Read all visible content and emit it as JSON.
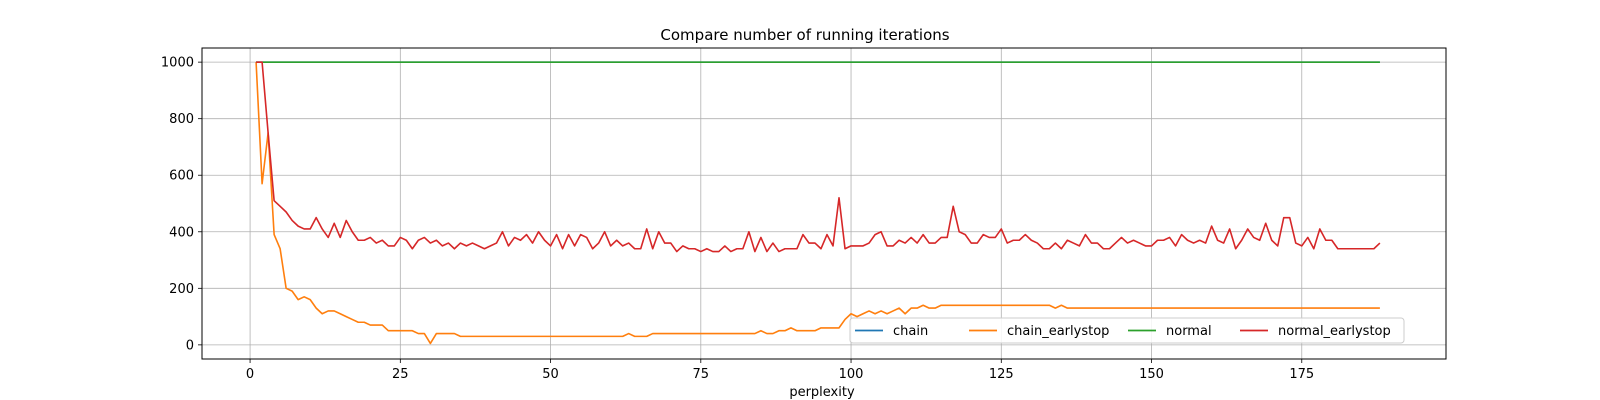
{
  "chart_data": {
    "type": "line",
    "title": "Compare number of running iterations",
    "xlabel": "perplexity",
    "ylabel": "",
    "xlim": [
      -8,
      199
    ],
    "ylim": [
      -50,
      1050
    ],
    "xticks": [
      0,
      25,
      50,
      75,
      100,
      125,
      150,
      175
    ],
    "yticks": [
      0,
      200,
      400,
      600,
      800,
      1000
    ],
    "grid": true,
    "legend_position": "lower right",
    "series": [
      {
        "name": "chain",
        "color": "#1f77b4",
        "x_start": 1,
        "x_end": 188,
        "constant": 1000
      },
      {
        "name": "chain_earlystop",
        "color": "#ff7f0e",
        "x_start": 1,
        "values": [
          1000,
          570,
          750,
          390,
          340,
          200,
          190,
          160,
          170,
          160,
          130,
          110,
          120,
          120,
          110,
          100,
          90,
          80,
          80,
          70,
          70,
          70,
          50,
          50,
          50,
          50,
          50,
          40,
          40,
          5,
          40,
          40,
          40,
          40,
          30,
          30,
          30,
          30,
          30,
          30,
          30,
          30,
          30,
          30,
          30,
          30,
          30,
          30,
          30,
          30,
          30,
          30,
          30,
          30,
          30,
          30,
          30,
          30,
          30,
          30,
          30,
          30,
          40,
          30,
          30,
          30,
          40,
          40,
          40,
          40,
          40,
          40,
          40,
          40,
          40,
          40,
          40,
          40,
          40,
          40,
          40,
          40,
          40,
          40,
          50,
          40,
          40,
          50,
          50,
          60,
          50,
          50,
          50,
          50,
          60,
          60,
          60,
          60,
          90,
          110,
          100,
          110,
          120,
          110,
          120,
          110,
          120,
          130,
          110,
          130,
          130,
          140,
          130,
          130,
          140,
          140,
          140,
          140,
          140,
          140,
          140,
          140,
          140,
          140,
          140,
          140,
          140,
          140,
          140,
          140,
          140,
          140,
          140,
          130,
          140,
          130,
          130,
          130,
          130,
          130,
          130,
          130,
          130,
          130,
          130,
          130,
          130,
          130,
          130,
          130,
          130,
          130,
          130,
          130,
          130,
          130,
          130,
          130,
          130,
          130,
          130,
          130,
          130,
          130,
          130,
          130,
          130,
          130,
          130,
          130,
          130,
          130,
          130,
          130,
          130,
          130,
          130,
          130,
          130,
          130,
          130,
          130,
          130,
          130,
          130,
          130,
          130,
          130
        ]
      },
      {
        "name": "normal",
        "color": "#2ca02c",
        "x_start": 1,
        "x_end": 188,
        "constant": 1000
      },
      {
        "name": "normal_earlystop",
        "color": "#d62728",
        "x_start": 1,
        "values": [
          1000,
          1000,
          750,
          510,
          490,
          470,
          440,
          420,
          410,
          410,
          450,
          410,
          380,
          430,
          380,
          440,
          400,
          370,
          370,
          380,
          360,
          370,
          350,
          350,
          380,
          370,
          340,
          370,
          380,
          360,
          370,
          350,
          360,
          340,
          360,
          350,
          360,
          350,
          340,
          350,
          360,
          400,
          350,
          380,
          370,
          390,
          360,
          400,
          370,
          350,
          390,
          340,
          390,
          350,
          390,
          380,
          340,
          360,
          400,
          350,
          370,
          350,
          360,
          340,
          340,
          410,
          340,
          400,
          360,
          360,
          330,
          350,
          340,
          340,
          330,
          340,
          330,
          330,
          350,
          330,
          340,
          340,
          400,
          330,
          380,
          330,
          360,
          330,
          340,
          340,
          340,
          390,
          360,
          360,
          340,
          390,
          350,
          520,
          340,
          350,
          350,
          350,
          360,
          390,
          400,
          350,
          350,
          370,
          360,
          380,
          360,
          390,
          360,
          360,
          380,
          380,
          490,
          400,
          390,
          360,
          360,
          390,
          380,
          380,
          410,
          360,
          370,
          370,
          390,
          370,
          360,
          340,
          340,
          360,
          340,
          370,
          360,
          350,
          390,
          360,
          360,
          340,
          340,
          360,
          380,
          360,
          370,
          360,
          350,
          350,
          370,
          370,
          380,
          350,
          390,
          370,
          360,
          370,
          360,
          420,
          370,
          360,
          410,
          340,
          370,
          410,
          380,
          370,
          430,
          370,
          350,
          450,
          450,
          360,
          350,
          380,
          340,
          410,
          370,
          370,
          340,
          340,
          340,
          340,
          340,
          340,
          340,
          360
        ]
      }
    ]
  }
}
